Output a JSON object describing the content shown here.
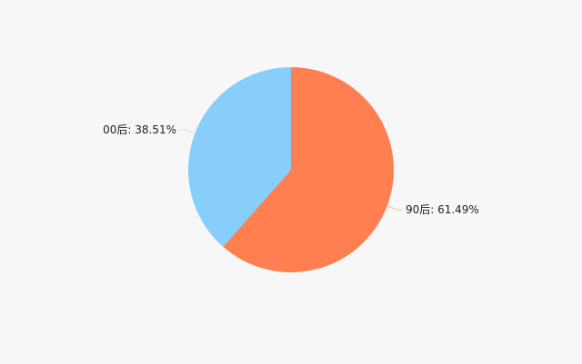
{
  "chart_data": {
    "type": "pie",
    "title": "",
    "start_angle": "top, clockwise",
    "slices": [
      {
        "label": "90后",
        "value": 61.49,
        "display": "90后: 61.49%",
        "color": "#ff7f50"
      },
      {
        "label": "00后",
        "value": 38.51,
        "display": "00后: 38.51%",
        "color": "#87cefa"
      }
    ],
    "legend": "none",
    "background": "#f7f7f7"
  }
}
